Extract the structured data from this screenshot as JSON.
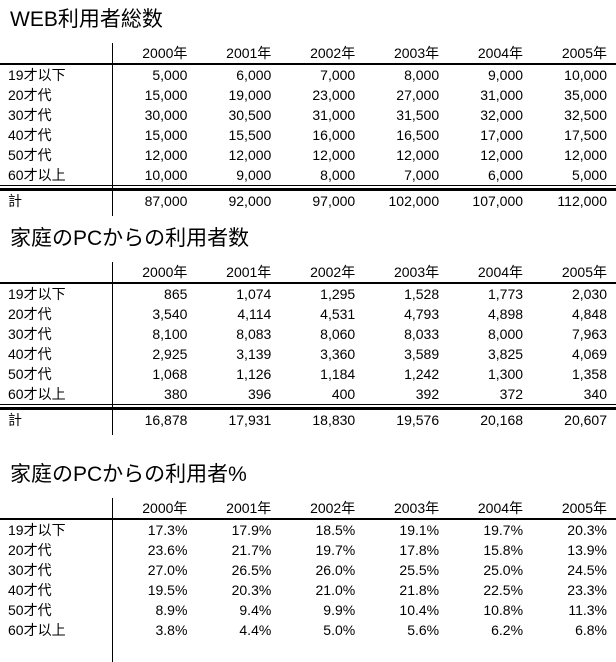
{
  "page": {
    "background": "#ffffff",
    "text_color": "#000000",
    "line_color": "#000000"
  },
  "tables": [
    {
      "title": "WEB利用者総数",
      "columns": [
        "2000年",
        "2001年",
        "2002年",
        "2003年",
        "2004年",
        "2005年"
      ],
      "rows": [
        {
          "label": "19才以下",
          "values": [
            "5,000",
            "6,000",
            "7,000",
            "8,000",
            "9,000",
            "10,000"
          ]
        },
        {
          "label": "20才代",
          "values": [
            "15,000",
            "19,000",
            "23,000",
            "27,000",
            "31,000",
            "35,000"
          ]
        },
        {
          "label": "30才代",
          "values": [
            "30,000",
            "30,500",
            "31,000",
            "31,500",
            "32,000",
            "32,500"
          ]
        },
        {
          "label": "40才代",
          "values": [
            "15,000",
            "15,500",
            "16,000",
            "16,500",
            "17,000",
            "17,500"
          ]
        },
        {
          "label": "50才代",
          "values": [
            "12,000",
            "12,000",
            "12,000",
            "12,000",
            "12,000",
            "12,000"
          ]
        },
        {
          "label": "60才以上",
          "values": [
            "10,000",
            "9,000",
            "8,000",
            "7,000",
            "6,000",
            "5,000"
          ]
        }
      ],
      "total_row": {
        "label": "計",
        "values": [
          "87,000",
          "92,000",
          "97,000",
          "102,000",
          "107,000",
          "112,000"
        ]
      }
    },
    {
      "title": "家庭のPCからの利用者数",
      "columns": [
        "2000年",
        "2001年",
        "2002年",
        "2003年",
        "2004年",
        "2005年"
      ],
      "rows": [
        {
          "label": "19才以下",
          "values": [
            "865",
            "1,074",
            "1,295",
            "1,528",
            "1,773",
            "2,030"
          ]
        },
        {
          "label": "20才代",
          "values": [
            "3,540",
            "4,114",
            "4,531",
            "4,793",
            "4,898",
            "4,848"
          ]
        },
        {
          "label": "30才代",
          "values": [
            "8,100",
            "8,083",
            "8,060",
            "8,033",
            "8,000",
            "7,963"
          ]
        },
        {
          "label": "40才代",
          "values": [
            "2,925",
            "3,139",
            "3,360",
            "3,589",
            "3,825",
            "4,069"
          ]
        },
        {
          "label": "50才代",
          "values": [
            "1,068",
            "1,126",
            "1,184",
            "1,242",
            "1,300",
            "1,358"
          ]
        },
        {
          "label": "60才以上",
          "values": [
            "380",
            "396",
            "400",
            "392",
            "372",
            "340"
          ]
        }
      ],
      "total_row": {
        "label": "計",
        "values": [
          "16,878",
          "17,931",
          "18,830",
          "19,576",
          "20,168",
          "20,607"
        ]
      }
    },
    {
      "title": "家庭のPCからの利用者%",
      "columns": [
        "2000年",
        "2001年",
        "2002年",
        "2003年",
        "2004年",
        "2005年"
      ],
      "rows": [
        {
          "label": "19才以下",
          "values": [
            "17.3%",
            "17.9%",
            "18.5%",
            "19.1%",
            "19.7%",
            "20.3%"
          ]
        },
        {
          "label": "20才代",
          "values": [
            "23.6%",
            "21.7%",
            "19.7%",
            "17.8%",
            "15.8%",
            "13.9%"
          ]
        },
        {
          "label": "30才代",
          "values": [
            "27.0%",
            "26.5%",
            "26.0%",
            "25.5%",
            "25.0%",
            "24.5%"
          ]
        },
        {
          "label": "40才代",
          "values": [
            "19.5%",
            "20.3%",
            "21.0%",
            "21.8%",
            "22.5%",
            "23.3%"
          ]
        },
        {
          "label": "50才代",
          "values": [
            "8.9%",
            "9.4%",
            "9.9%",
            "10.4%",
            "10.8%",
            "11.3%"
          ]
        },
        {
          "label": "60才以上",
          "values": [
            "3.8%",
            "4.4%",
            "5.0%",
            "5.6%",
            "6.2%",
            "6.8%"
          ]
        }
      ],
      "total_row": null
    }
  ]
}
